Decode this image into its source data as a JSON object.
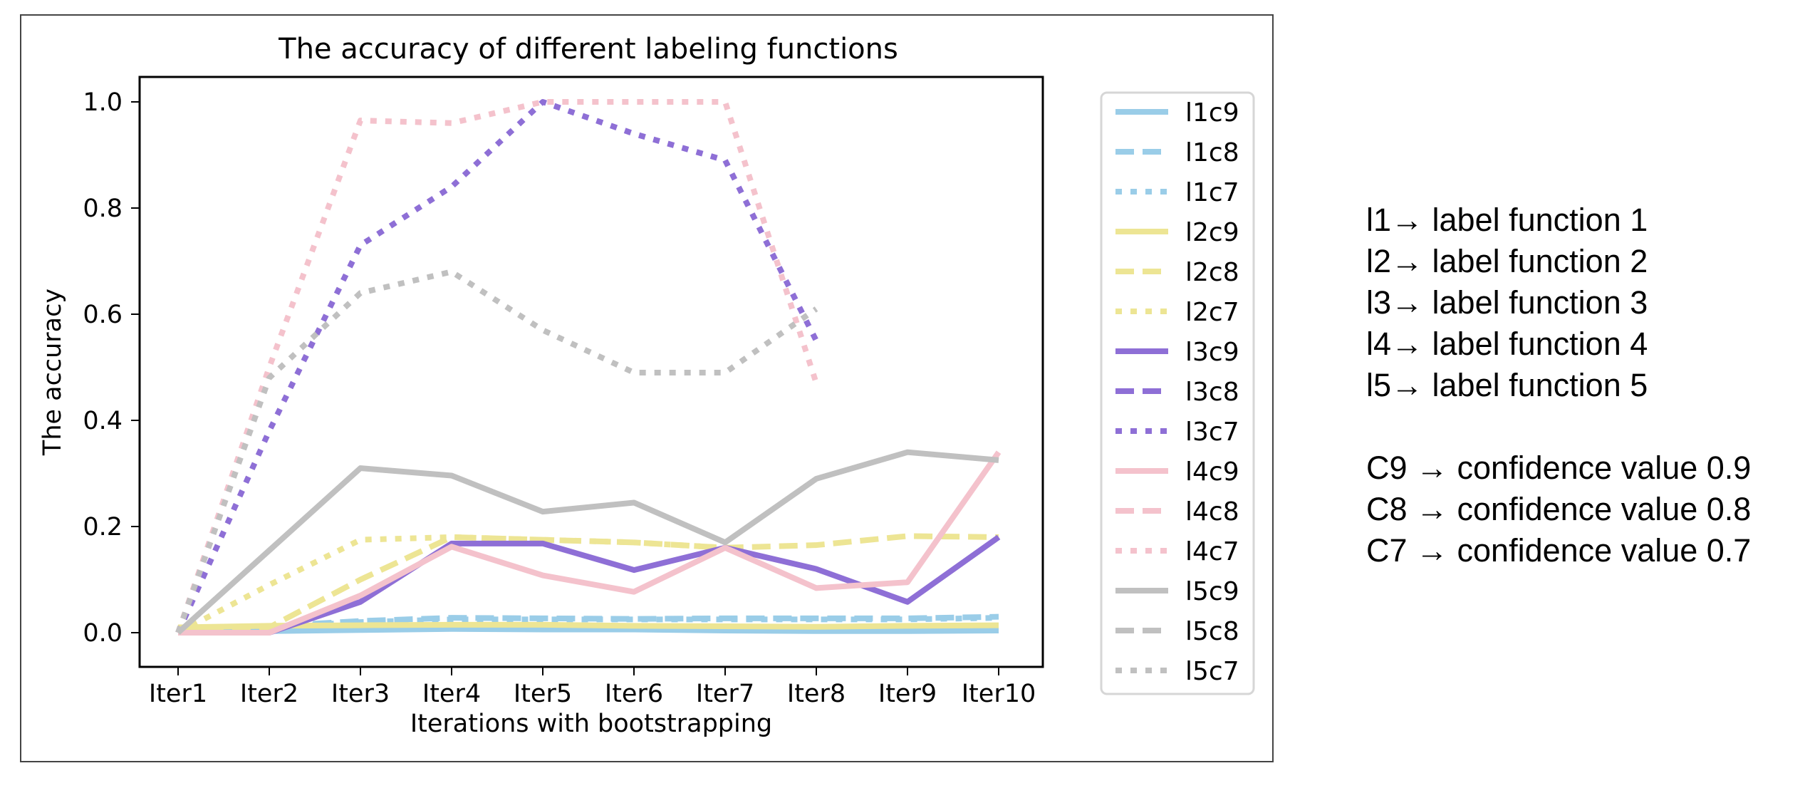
{
  "chart_data": {
    "type": "line",
    "title": "The accuracy of different labeling functions",
    "xlabel": "Iterations with bootstrapping",
    "ylabel": "The accuracy",
    "categories": [
      "Iter1",
      "Iter2",
      "Iter3",
      "Iter4",
      "Iter5",
      "Iter6",
      "Iter7",
      "Iter8",
      "Iter9",
      "Iter10"
    ],
    "ylim": [
      -0.05,
      1.05
    ],
    "yticks": [
      "0.0",
      "0.2",
      "0.4",
      "0.6",
      "0.8",
      "1.0"
    ],
    "legend_position": "right, outside plot area",
    "grid": false,
    "series": [
      {
        "name": "l1c9",
        "color": "#9acde8",
        "style": "solid",
        "values": [
          0,
          0.003,
          0.005,
          0.007,
          0.006,
          0.006,
          0.004,
          0.003,
          0.003,
          0.004
        ]
      },
      {
        "name": "l1c8",
        "color": "#9acde8",
        "style": "dashed",
        "values": [
          0,
          0.012,
          0.022,
          0.028,
          0.027,
          0.026,
          0.027,
          0.027,
          0.027,
          0.03
        ]
      },
      {
        "name": "l1c7",
        "color": "#9acde8",
        "style": "dotted",
        "values": [
          0,
          0.01,
          0.02,
          0.025,
          0.025,
          0.025,
          0.025,
          0.025,
          0.025,
          0.028
        ]
      },
      {
        "name": "l2c9",
        "color": "#ede594",
        "style": "solid",
        "values": [
          0.01,
          0.013,
          0.014,
          0.015,
          0.015,
          0.013,
          0.012,
          0.011,
          0.013,
          0.014
        ]
      },
      {
        "name": "l2c8",
        "color": "#ede594",
        "style": "dashed",
        "values": [
          0,
          0.01,
          0.1,
          0.18,
          0.175,
          0.17,
          0.16,
          0.165,
          0.182,
          0.18
        ]
      },
      {
        "name": "l2c7",
        "color": "#ede594",
        "style": "dotted",
        "values": [
          0,
          0.09,
          0.175,
          0.18,
          0.175,
          0.17,
          0.16,
          null,
          null,
          null
        ]
      },
      {
        "name": "l3c9",
        "color": "#8e6fd6",
        "style": "solid",
        "values": [
          0,
          0,
          0.058,
          0.168,
          0.168,
          0.118,
          0.16,
          0.12,
          0.058,
          0.18
        ]
      },
      {
        "name": "l3c8",
        "color": "#8e6fd6",
        "style": "dashed",
        "values": [
          null,
          null,
          null,
          null,
          null,
          null,
          null,
          null,
          null,
          null
        ]
      },
      {
        "name": "l3c7",
        "color": "#8e6fd6",
        "style": "dotted",
        "values": [
          0,
          0.38,
          0.73,
          0.84,
          1.0,
          0.94,
          0.89,
          0.55,
          null,
          null
        ]
      },
      {
        "name": "l4c9",
        "color": "#f4c2cc",
        "style": "solid",
        "values": [
          0,
          0,
          0.07,
          0.162,
          0.108,
          0.077,
          0.16,
          0.084,
          0.095,
          0.34
        ]
      },
      {
        "name": "l4c8",
        "color": "#f4c2cc",
        "style": "dashed",
        "values": [
          null,
          null,
          null,
          null,
          null,
          null,
          null,
          null,
          null,
          null
        ]
      },
      {
        "name": "l4c7",
        "color": "#f4c2cc",
        "style": "dotted",
        "values": [
          0,
          0.5,
          0.965,
          0.96,
          1.0,
          1.0,
          1.0,
          0.47,
          null,
          null
        ]
      },
      {
        "name": "l5c9",
        "color": "#c0c0c0",
        "style": "solid",
        "values": [
          0,
          0.155,
          0.31,
          0.296,
          0.228,
          0.245,
          0.17,
          0.29,
          0.34,
          0.325
        ]
      },
      {
        "name": "l5c8",
        "color": "#c0c0c0",
        "style": "dashed",
        "values": [
          null,
          null,
          null,
          null,
          null,
          null,
          null,
          null,
          null,
          null
        ]
      },
      {
        "name": "l5c7",
        "color": "#c0c0c0",
        "style": "dotted",
        "values": [
          0,
          0.48,
          0.64,
          0.68,
          0.57,
          0.49,
          0.49,
          0.61,
          null,
          null
        ]
      }
    ]
  },
  "notes": {
    "label_functions": [
      "l1→ label function 1",
      "l2→ label function 2",
      "l3→ label function 3",
      "l4→ label function 4",
      "l5→ label function 5"
    ],
    "confidence_values": [
      "C9 → confidence value 0.9",
      "C8 → confidence value 0.8",
      "C7 → confidence value 0.7"
    ]
  }
}
